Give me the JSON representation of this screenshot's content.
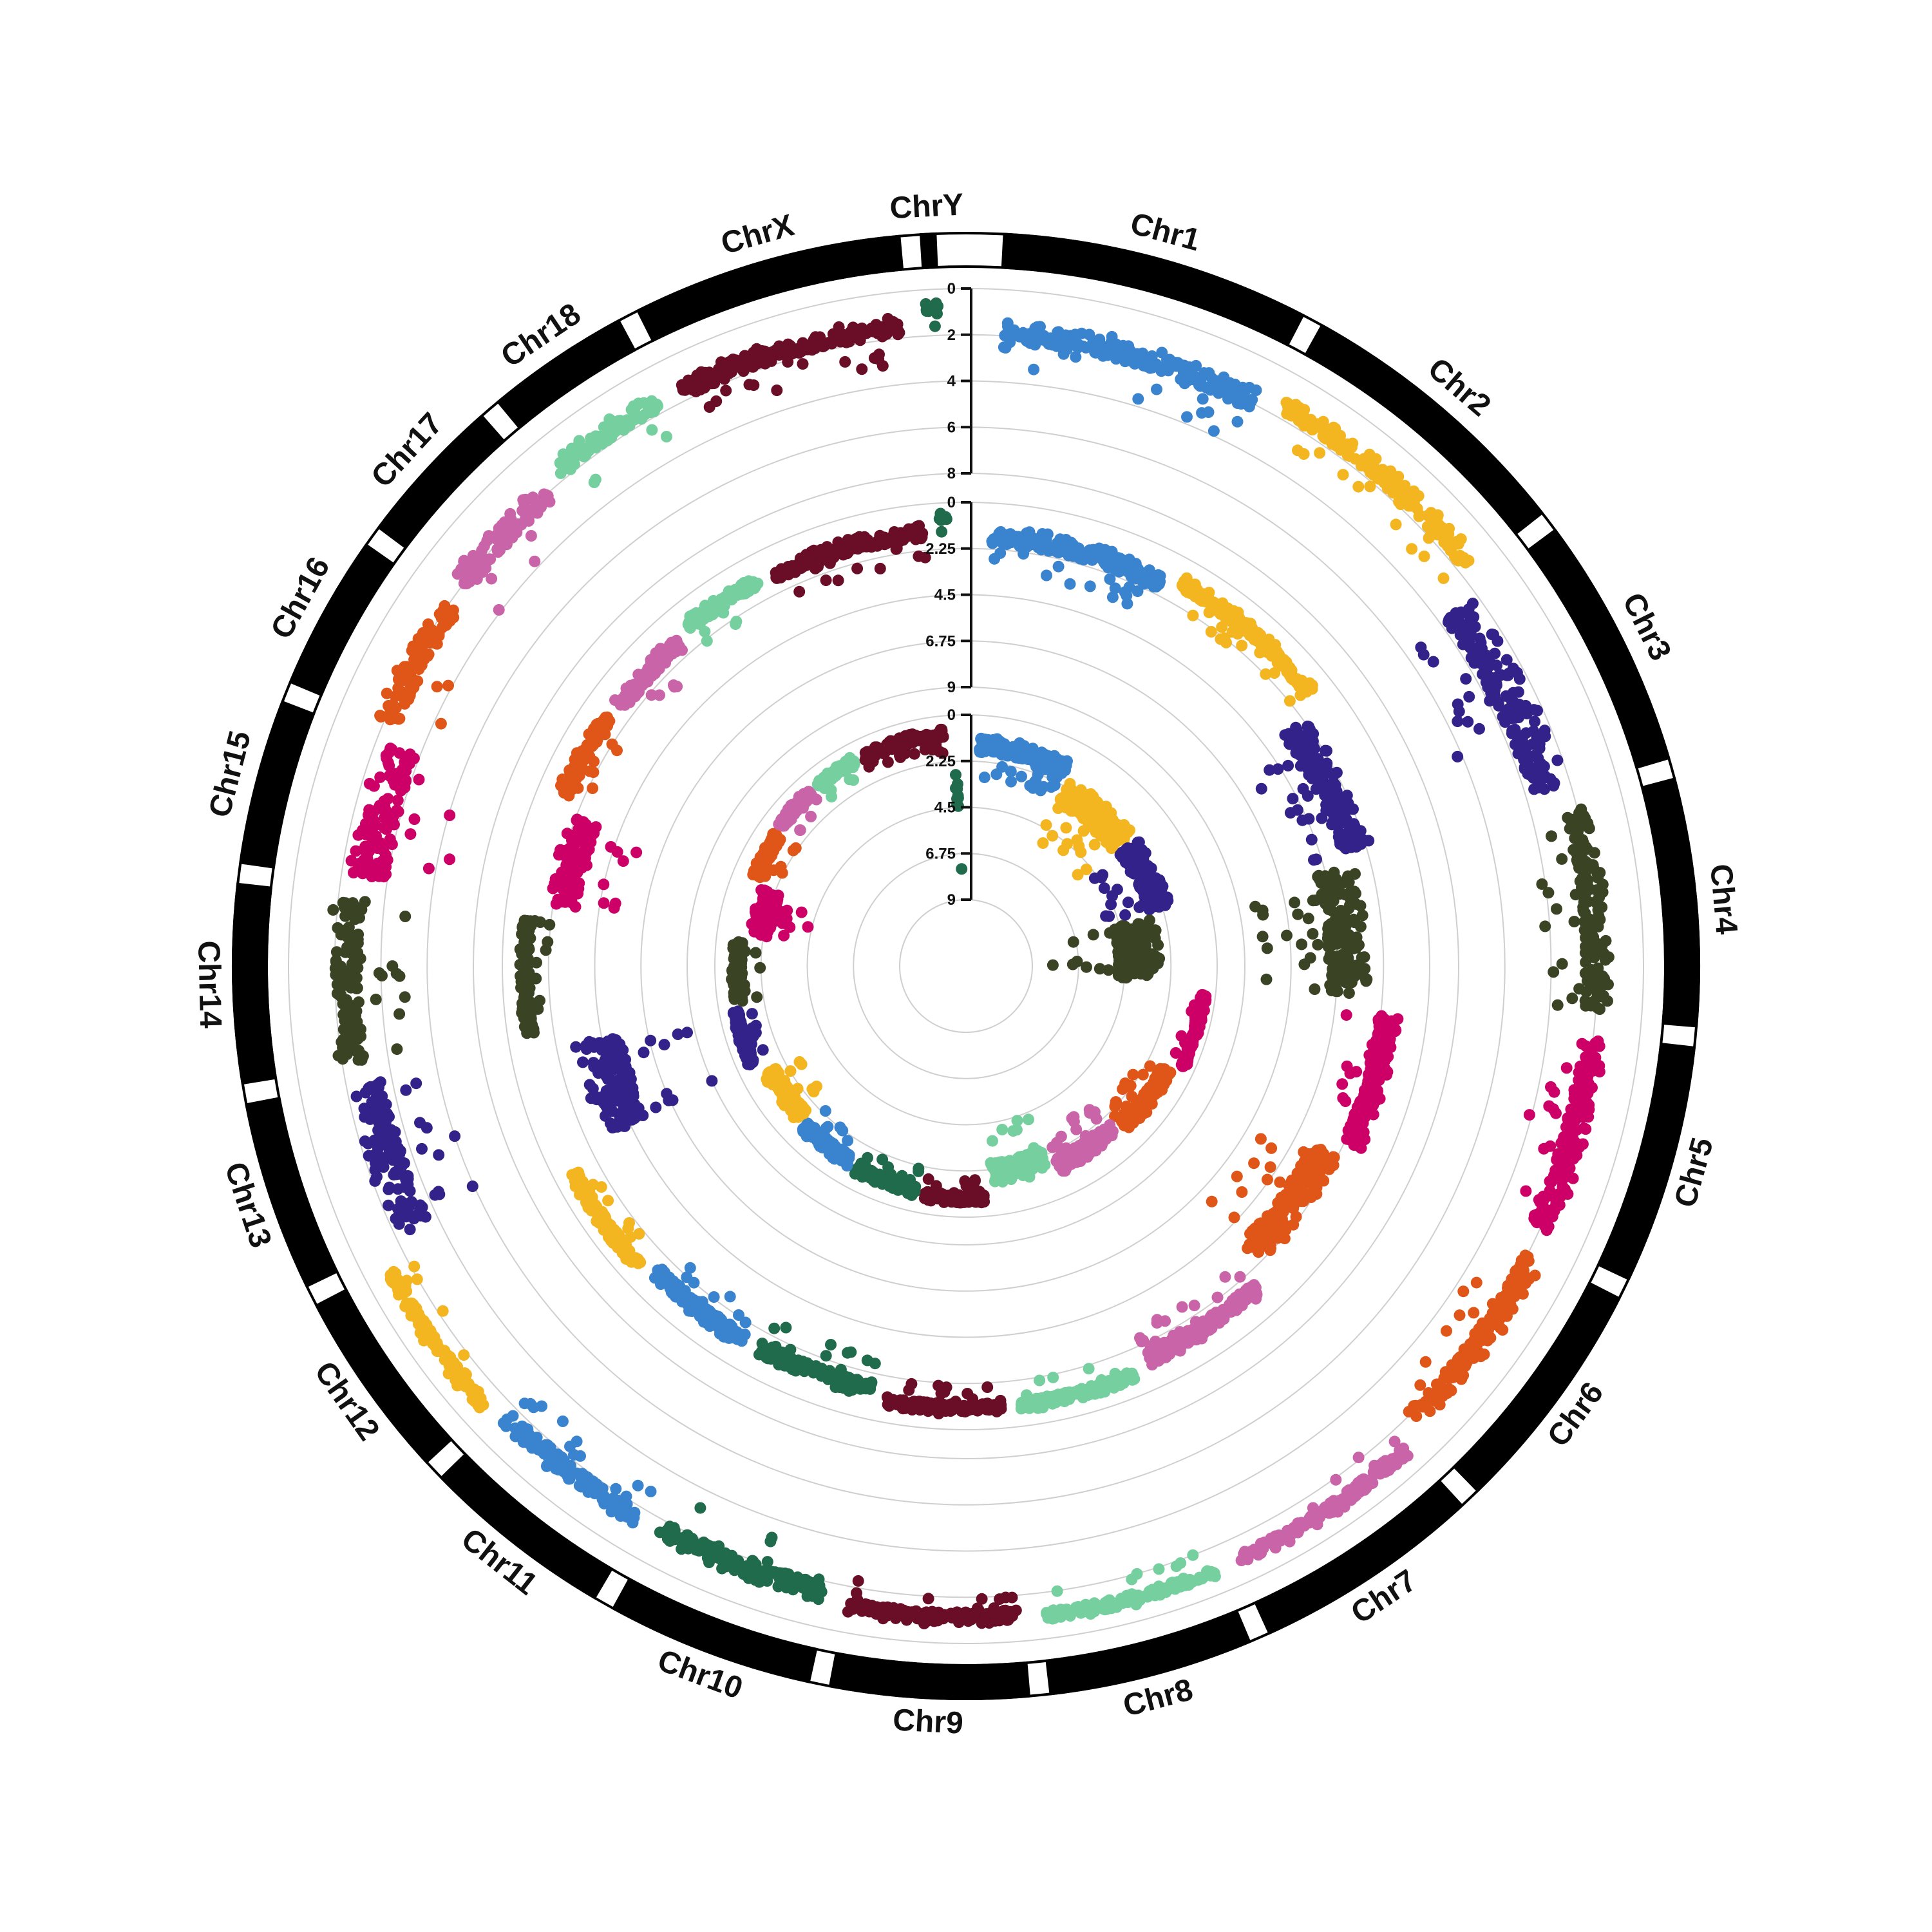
{
  "chart_data": {
    "type": "scatter",
    "subtype": "circular-manhattan",
    "title": "",
    "legend": "none",
    "grid": true,
    "chromosomes": [
      {
        "name": "Chr1",
        "color": "#3a84cf",
        "length": 195
      },
      {
        "name": "Chr2",
        "color": "#f3b520",
        "length": 182
      },
      {
        "name": "Chr3",
        "color": "#33228a",
        "length": 160
      },
      {
        "name": "Chr4",
        "color": "#3a4424",
        "length": 156
      },
      {
        "name": "Chr5",
        "color": "#cc0066",
        "length": 151
      },
      {
        "name": "Chr6",
        "color": "#e05518",
        "length": 150
      },
      {
        "name": "Chr7",
        "color": "#c964a8",
        "length": 145
      },
      {
        "name": "Chr8",
        "color": "#76cf9e",
        "length": 129
      },
      {
        "name": "Chr9",
        "color": "#6a0d26",
        "length": 125
      },
      {
        "name": "Chr10",
        "color": "#1f6b4b",
        "length": 131
      },
      {
        "name": "Chr11",
        "color": "#3a84cf",
        "length": 122
      },
      {
        "name": "Chr12",
        "color": "#f3b520",
        "length": 120
      },
      {
        "name": "Chr13",
        "color": "#33228a",
        "length": 120
      },
      {
        "name": "Chr14",
        "color": "#3a4424",
        "length": 125
      },
      {
        "name": "Chr15",
        "color": "#cc0066",
        "length": 104
      },
      {
        "name": "Chr16",
        "color": "#e05518",
        "length": 98
      },
      {
        "name": "Chr17",
        "color": "#c964a8",
        "length": 95
      },
      {
        "name": "Chr18",
        "color": "#76cf9e",
        "length": 91
      },
      {
        "name": "ChrX",
        "color": "#6a0d26",
        "length": 171
      },
      {
        "name": "ChrY",
        "color": "#1f6b4b",
        "length": 9
      }
    ],
    "tracks": [
      {
        "axis_ticks": [
          "0",
          "2",
          "4",
          "6",
          "8"
        ],
        "ylim": [
          0,
          8
        ],
        "max_values": [
          3.8,
          2.9,
          6.2,
          4.2,
          4.1,
          3.6,
          2.1,
          2.0,
          2.3,
          3.2,
          3.0,
          2.2,
          6.0,
          5.0,
          6.5,
          4.3,
          3.9,
          3.0,
          3.1,
          1.6
        ]
      },
      {
        "axis_ticks": [
          "0",
          "2.25",
          "4.5",
          "6.75",
          "9"
        ],
        "ylim": [
          0,
          9
        ],
        "max_values": [
          3.3,
          2.4,
          5.8,
          8.2,
          3.9,
          6.0,
          3.0,
          2.1,
          2.1,
          3.0,
          2.8,
          2.0,
          9.0,
          2.2,
          5.6,
          2.6,
          3.0,
          2.5,
          2.8,
          1.4
        ]
      },
      {
        "axis_ticks": [
          "0",
          "2.25",
          "4.5",
          "6.75",
          "9"
        ],
        "ylim": [
          0,
          9
        ],
        "max_values": [
          3.0,
          5.2,
          5.0,
          8.0,
          1.2,
          2.6,
          3.2,
          4.3,
          1.8,
          2.1,
          2.4,
          2.9,
          1.6,
          2.2,
          4.3,
          2.2,
          1.8,
          1.7,
          1.8,
          7.5
        ]
      }
    ]
  }
}
